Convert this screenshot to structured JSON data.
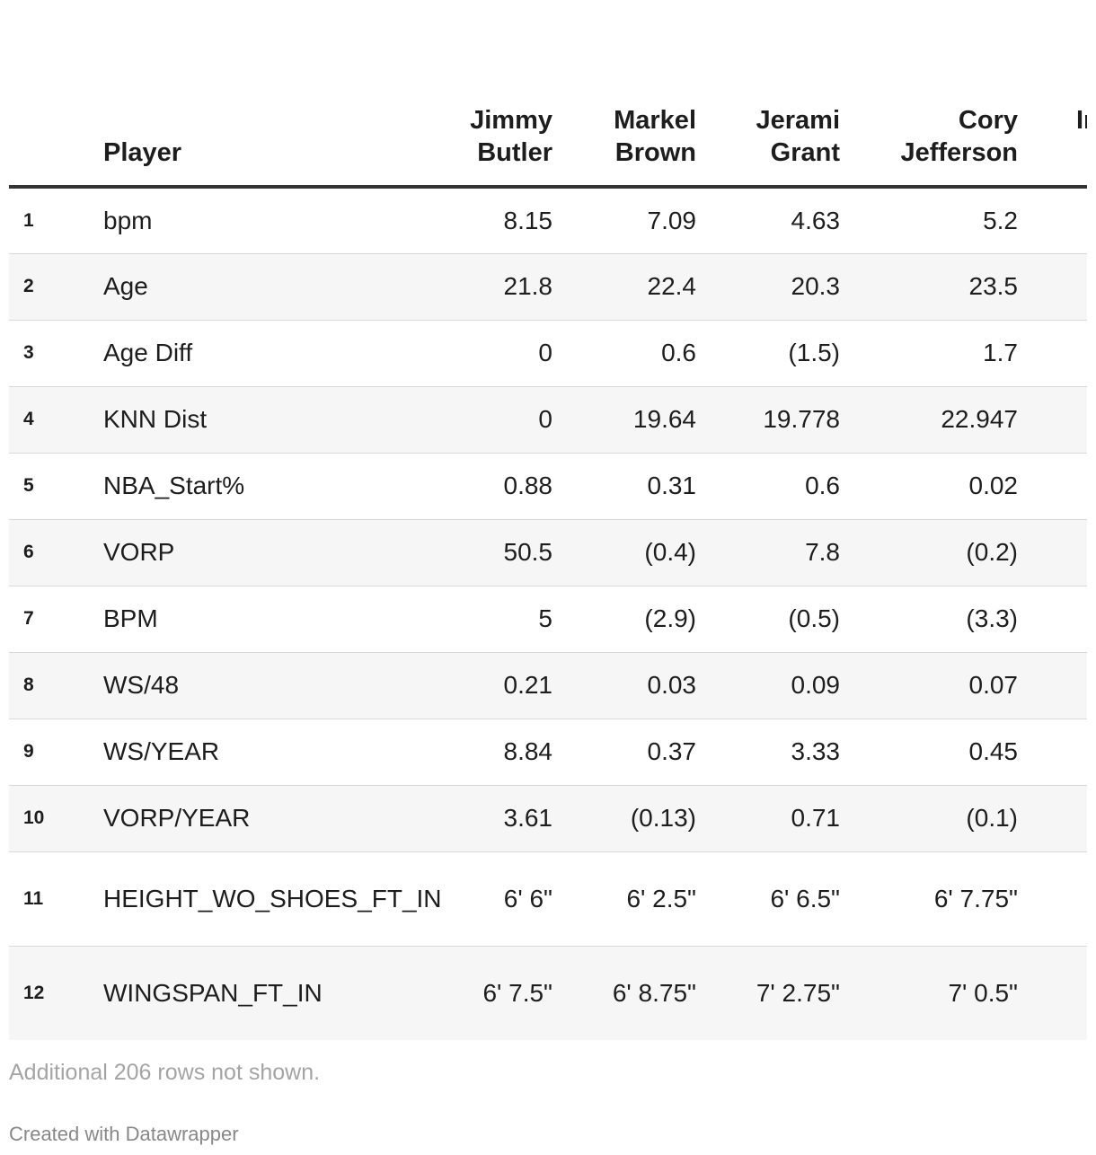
{
  "chart_data": {
    "type": "table",
    "columns": [
      "",
      "Player",
      "Jimmy Butler",
      "Markel Brown",
      "Jerami Grant",
      "Cory Jefferson",
      "In"
    ],
    "header": {
      "player": "Player",
      "col1": [
        "Jimmy",
        "Butler"
      ],
      "col2": [
        "Markel",
        "Brown"
      ],
      "col3": [
        "Jerami",
        "Grant"
      ],
      "col4": [
        "Cory",
        "Jefferson"
      ],
      "col5_partial": "In"
    },
    "rows": [
      {
        "idx": "1",
        "label": "bpm",
        "values": [
          "8.15",
          "7.09",
          "4.63",
          "5.2"
        ]
      },
      {
        "idx": "2",
        "label": "Age",
        "values": [
          "21.8",
          "22.4",
          "20.3",
          "23.5"
        ]
      },
      {
        "idx": "3",
        "label": "Age Diff",
        "values": [
          "0",
          "0.6",
          "(1.5)",
          "1.7"
        ]
      },
      {
        "idx": "4",
        "label": "KNN Dist",
        "values": [
          "0",
          "19.64",
          "19.778",
          "22.947"
        ]
      },
      {
        "idx": "5",
        "label": "NBA_Start%",
        "values": [
          "0.88",
          "0.31",
          "0.6",
          "0.02"
        ]
      },
      {
        "idx": "6",
        "label": "VORP",
        "values": [
          "50.5",
          "(0.4)",
          "7.8",
          "(0.2)"
        ]
      },
      {
        "idx": "7",
        "label": "BPM",
        "values": [
          "5",
          "(2.9)",
          "(0.5)",
          "(3.3)"
        ]
      },
      {
        "idx": "8",
        "label": "WS/48",
        "values": [
          "0.21",
          "0.03",
          "0.09",
          "0.07"
        ]
      },
      {
        "idx": "9",
        "label": "WS/YEAR",
        "values": [
          "8.84",
          "0.37",
          "3.33",
          "0.45"
        ]
      },
      {
        "idx": "10",
        "label": "VORP/YEAR",
        "values": [
          "3.61",
          "(0.13)",
          "0.71",
          "(0.1)"
        ]
      },
      {
        "idx": "11",
        "label": "HEIGHT_WO_SHOES_FT_IN",
        "values": [
          "6' 6\"",
          "6' 2.5\"",
          "6' 6.5\"",
          "6' 7.75\""
        ]
      },
      {
        "idx": "12",
        "label": "WINGSPAN_FT_IN",
        "values": [
          "6' 7.5\"",
          "6' 8.75\"",
          "7' 2.75\"",
          "7' 0.5\""
        ]
      }
    ]
  },
  "footer": {
    "note": "Additional 206 rows not shown.",
    "credit": "Created with Datawrapper"
  },
  "colors": {
    "text": "#1d1d1d",
    "header_rule": "#333333",
    "stripe": "#f6f6f6",
    "row_rule": "#d9d9d9",
    "note": "#a4a4a4"
  }
}
